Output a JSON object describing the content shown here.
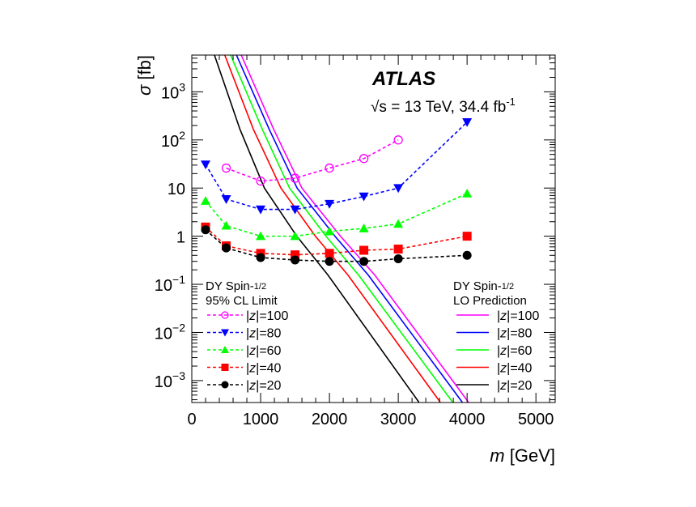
{
  "chart_data": {
    "type": "line",
    "title": "ATLAS",
    "subtitle_prefix": "√s = 13 TeV, 34.4 fb",
    "subtitle_sup": "-1",
    "xlabel_italic": "m",
    "xlabel": "[GeV]",
    "ylabel_italic": "σ",
    "ylabel": "[fb]",
    "xlim": [
      0,
      5280
    ],
    "ylim": [
      0.00035,
      5800
    ],
    "yscale": "log",
    "x_ticks": [
      0,
      1000,
      2000,
      3000,
      4000,
      5000
    ],
    "x_tick_labels": [
      "0",
      "1000",
      "2000",
      "3000",
      "4000",
      "5000"
    ],
    "y_ticks": [
      1000,
      100,
      10,
      1,
      0.1,
      0.01,
      0.001
    ],
    "y_tick_labels": [
      {
        "base": "10",
        "exp": "3"
      },
      {
        "base": "10",
        "exp": "2"
      },
      {
        "base": "10",
        "exp": ""
      },
      {
        "base": "1",
        "exp": ""
      },
      {
        "base": "10",
        "exp": "−1"
      },
      {
        "base": "10",
        "exp": "−2"
      },
      {
        "base": "10",
        "exp": "−3"
      }
    ],
    "grid": false,
    "legend_limit": {
      "title1": "DY Spin-",
      "title_frac": "1/2",
      "title2": "95% CL Limit",
      "placement": "bottom-left"
    },
    "legend_prediction": {
      "title1": "DY Spin-",
      "title_frac": "1/2",
      "title2": "LO Prediction",
      "placement": "bottom-right"
    },
    "limit_series": [
      {
        "name": "|z|=100",
        "z": "100",
        "color": "#ff00ff",
        "marker": "open-circle",
        "x": [
          500,
          1000,
          1500,
          2000,
          2500,
          3000
        ],
        "y": [
          26,
          14,
          16,
          26,
          41,
          100
        ]
      },
      {
        "name": "|z|=80",
        "z": "80",
        "color": "#0000ff",
        "marker": "triangle-down",
        "x": [
          200,
          500,
          1000,
          1500,
          2000,
          2500,
          3000,
          4000
        ],
        "y": [
          31,
          5.9,
          3.6,
          3.6,
          4.7,
          6.7,
          10,
          235
        ]
      },
      {
        "name": "|z|=60",
        "z": "60",
        "color": "#00ff00",
        "marker": "triangle-up",
        "x": [
          200,
          500,
          1000,
          1500,
          2000,
          2500,
          3000,
          4000
        ],
        "y": [
          5.4,
          1.65,
          1.0,
          1.0,
          1.26,
          1.45,
          1.8,
          7.7
        ]
      },
      {
        "name": "|z|=40",
        "z": "40",
        "color": "#ff0000",
        "marker": "square",
        "x": [
          200,
          500,
          1000,
          1500,
          2000,
          2500,
          3000,
          4000
        ],
        "y": [
          1.55,
          0.63,
          0.44,
          0.41,
          0.44,
          0.51,
          0.54,
          1.0
        ]
      },
      {
        "name": "|z|=20",
        "z": "20",
        "color": "#000000",
        "marker": "circle",
        "x": [
          200,
          500,
          1000,
          1500,
          2000,
          2500,
          3000,
          4000
        ],
        "y": [
          1.36,
          0.57,
          0.36,
          0.32,
          0.3,
          0.3,
          0.34,
          0.4
        ]
      }
    ],
    "prediction_series": [
      {
        "name": "|z|=100",
        "z": "100",
        "color": "#ff00ff",
        "x": [
          720,
          1190,
          1600,
          2160,
          2660,
          4020
        ],
        "y": [
          5750,
          166,
          10,
          1,
          0.155,
          0.000355
        ]
      },
      {
        "name": "|z|=80",
        "z": "80",
        "color": "#0000ff",
        "x": [
          650,
          1125,
          1530,
          2080,
          2565,
          3930
        ],
        "y": [
          5750,
          166,
          10,
          1,
          0.155,
          0.000355
        ]
      },
      {
        "name": "|z|=60",
        "z": "60",
        "color": "#00ff00",
        "x": [
          565,
          1025,
          1420,
          1950,
          2425,
          3790
        ],
        "y": [
          5750,
          166,
          10,
          1,
          0.155,
          0.000355
        ]
      },
      {
        "name": "|z|=40",
        "z": "40",
        "color": "#ff0000",
        "x": [
          480,
          895,
          1295,
          1796,
          2270,
          3610
        ],
        "y": [
          5750,
          166,
          10,
          1,
          0.155,
          0.000355
        ]
      },
      {
        "name": "|z|=20",
        "z": "20",
        "color": "#000000",
        "x": [
          330,
          700,
          1055,
          1526,
          1980,
          3300
        ],
        "y": [
          5750,
          166,
          10,
          1,
          0.155,
          0.000355
        ]
      }
    ]
  }
}
